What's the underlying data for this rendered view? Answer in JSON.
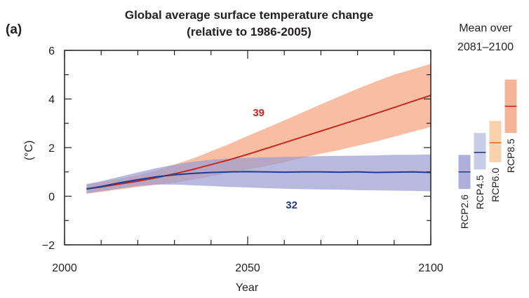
{
  "chart_data": {
    "type": "line",
    "panel_label": "(a)",
    "title": "Global average surface temperature change",
    "subtitle": "(relative to 1986-2005)",
    "xlabel": "Year",
    "ylabel": "(°C)",
    "xlim": [
      2000,
      2100
    ],
    "ylim": [
      -2,
      6
    ],
    "x_ticks": [
      2000,
      2050,
      2100
    ],
    "y_ticks": [
      -2,
      0,
      2,
      4,
      6
    ],
    "grid": false,
    "series": [
      {
        "id": "rcp85",
        "color": "#c8281e",
        "band_color": "#f4a27e",
        "count_label": "39",
        "x": [
          2006,
          2010,
          2015,
          2020,
          2025,
          2030,
          2035,
          2040,
          2045,
          2050,
          2055,
          2060,
          2065,
          2070,
          2075,
          2080,
          2085,
          2090,
          2095,
          2100
        ],
        "mean": [
          0.3,
          0.38,
          0.5,
          0.62,
          0.76,
          0.92,
          1.1,
          1.3,
          1.5,
          1.72,
          1.96,
          2.2,
          2.44,
          2.68,
          2.92,
          3.16,
          3.4,
          3.65,
          3.9,
          4.15
        ],
        "lower": [
          0.1,
          0.18,
          0.28,
          0.38,
          0.47,
          0.56,
          0.68,
          0.82,
          0.96,
          1.1,
          1.24,
          1.4,
          1.58,
          1.75,
          1.9,
          2.08,
          2.25,
          2.45,
          2.65,
          2.85
        ],
        "upper": [
          0.48,
          0.58,
          0.72,
          0.86,
          1.05,
          1.3,
          1.55,
          1.85,
          2.15,
          2.48,
          2.8,
          3.12,
          3.45,
          3.78,
          4.1,
          4.42,
          4.72,
          5.0,
          5.22,
          5.45
        ]
      },
      {
        "id": "rcp26",
        "color": "#1f3d8f",
        "band_color": "#9a9bd2",
        "count_label": "32",
        "x": [
          2006,
          2010,
          2015,
          2020,
          2025,
          2030,
          2035,
          2040,
          2045,
          2050,
          2055,
          2060,
          2065,
          2070,
          2075,
          2080,
          2085,
          2090,
          2095,
          2100
        ],
        "mean": [
          0.3,
          0.4,
          0.55,
          0.68,
          0.8,
          0.88,
          0.94,
          0.98,
          1.0,
          1.01,
          1.0,
          0.99,
          1.0,
          1.0,
          0.99,
          1.0,
          0.98,
          0.99,
          1.0,
          0.98
        ],
        "lower": [
          0.12,
          0.2,
          0.32,
          0.42,
          0.48,
          0.48,
          0.45,
          0.42,
          0.38,
          0.36,
          0.33,
          0.31,
          0.29,
          0.28,
          0.27,
          0.25,
          0.24,
          0.23,
          0.22,
          0.2
        ],
        "upper": [
          0.5,
          0.62,
          0.8,
          0.98,
          1.15,
          1.3,
          1.42,
          1.5,
          1.55,
          1.58,
          1.6,
          1.62,
          1.63,
          1.65,
          1.66,
          1.67,
          1.68,
          1.7,
          1.7,
          1.72
        ]
      }
    ],
    "side_panel": {
      "title_line1": "Mean over",
      "title_line2": "2081–2100",
      "ylim": [
        -2,
        6
      ],
      "boxes": [
        {
          "label": "RCP2.6",
          "mean": 1.0,
          "low": 0.3,
          "high": 1.7,
          "color": "#1f3d8f",
          "fill": "#9a9bd2"
        },
        {
          "label": "RCP4.5",
          "mean": 1.8,
          "low": 1.1,
          "high": 2.6,
          "color": "#1f3d8f",
          "fill": "#b9c0e0"
        },
        {
          "label": "RCP6.0",
          "mean": 2.2,
          "low": 1.4,
          "high": 3.1,
          "color": "#e07020",
          "fill": "#f6c79a"
        },
        {
          "label": "RCP8.5",
          "mean": 3.7,
          "low": 2.6,
          "high": 4.8,
          "color": "#c8281e",
          "fill": "#f4a27e"
        }
      ]
    }
  }
}
